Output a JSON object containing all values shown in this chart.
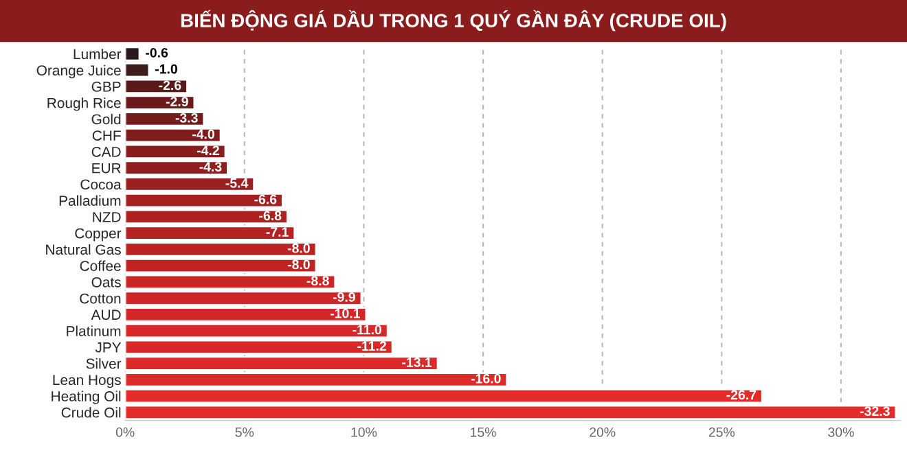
{
  "chart_data": {
    "type": "bar",
    "orientation": "horizontal",
    "title": "BIẾN ĐỘNG GIÁ DẦU TRONG 1 QUÝ GẦN ĐÂY (CRUDE OIL)",
    "categories": [
      "Lumber",
      "Orange Juice",
      "GBP",
      "Rough Rice",
      "Gold",
      "CHF",
      "CAD",
      "EUR",
      "Cocoa",
      "Palladium",
      "NZD",
      "Copper",
      "Natural Gas",
      "Coffee",
      "Oats",
      "Cotton",
      "AUD",
      "Platinum",
      "JPY",
      "Silver",
      "Lean Hogs",
      "Heating Oil",
      "Crude Oil"
    ],
    "values": [
      -0.6,
      -1.0,
      -2.6,
      -2.9,
      -3.3,
      -4.0,
      -4.2,
      -4.3,
      -5.4,
      -6.6,
      -6.8,
      -7.1,
      -8.0,
      -8.0,
      -8.8,
      -9.9,
      -10.1,
      -11.0,
      -11.2,
      -13.1,
      -16.0,
      -26.7,
      -32.3
    ],
    "colors": [
      "#2b1a1a",
      "#3d1c1c",
      "#5a1a1a",
      "#6b1b1b",
      "#761c1c",
      "#7f1d1d",
      "#871e1e",
      "#8f1f1f",
      "#9a1f1f",
      "#a52020",
      "#ae2121",
      "#b52222",
      "#bc2323",
      "#c22424",
      "#c82525",
      "#cd2626",
      "#d12727",
      "#d52828",
      "#d92828",
      "#dc2929",
      "#df2a2a",
      "#e22b2b",
      "#e52c2c"
    ],
    "value_labels": [
      "-0.6",
      "-1.0",
      "-2.6",
      "-2.9",
      "-3.3",
      "-4.0",
      "-4.2",
      "-4.3",
      "-5.4",
      "-6.6",
      "-6.8",
      "-7.1",
      "-8.0",
      "-8.0",
      "-8.8",
      "-9.9",
      "-10.1",
      "-11.0",
      "-11.2",
      "-13.1",
      "-16.0",
      "-26.7",
      "-32.3"
    ],
    "xlim": [
      0,
      -32.5
    ],
    "xticks": [
      {
        "value": 0,
        "label": "0%"
      },
      {
        "value": -5,
        "label": "5%"
      },
      {
        "value": -10,
        "label": "10%"
      },
      {
        "value": -15,
        "label": "15%"
      },
      {
        "value": -20,
        "label": "20%"
      },
      {
        "value": -25,
        "label": "25%"
      },
      {
        "value": -30,
        "label": "30%"
      }
    ],
    "grid": "x"
  }
}
